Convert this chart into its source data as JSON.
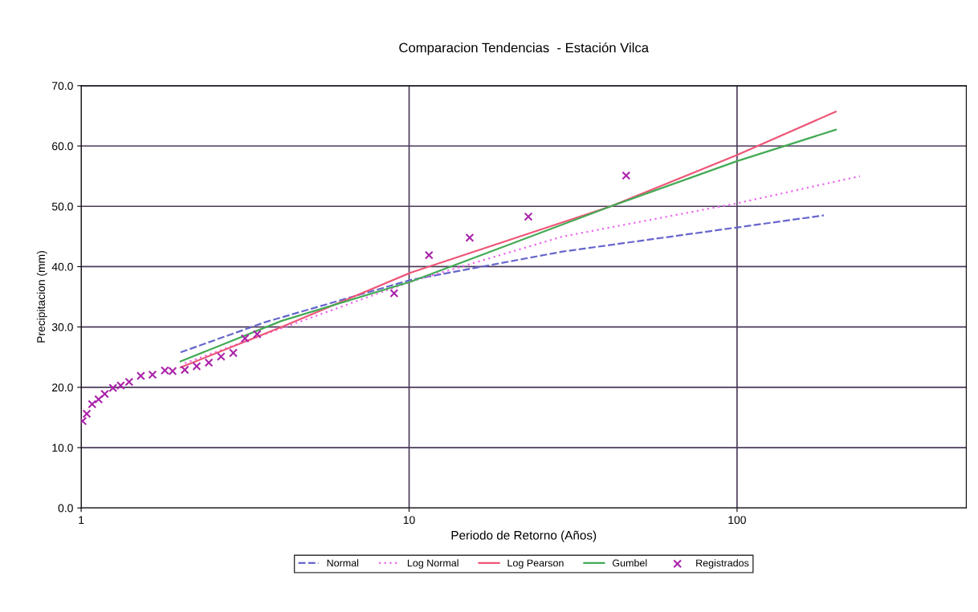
{
  "chart_data": {
    "type": "line",
    "title": "Comparacion Tendencias  - Estación Vilca",
    "xlabel": "Periodo de Retorno (Años)",
    "ylabel": "Precipitacion (mm)",
    "log": "x",
    "xlim": [
      1,
      500
    ],
    "xticks": [
      1,
      10,
      100
    ],
    "ylim": [
      0,
      70
    ],
    "yticks": [
      {
        "value": 0,
        "label": "0.0"
      },
      {
        "value": 10,
        "label": "10.0"
      },
      {
        "value": 20,
        "label": "20.0"
      },
      {
        "value": 30,
        "label": "30.0"
      },
      {
        "value": 40,
        "label": "40.0"
      },
      {
        "value": 50,
        "label": "50.0"
      },
      {
        "value": 60,
        "label": "60.0"
      },
      {
        "value": 70,
        "label": "70.0"
      }
    ],
    "grid": true,
    "legend": "bottom",
    "series": [
      {
        "name": "Normal",
        "color": "#6666cc",
        "line_style": "dashed",
        "x": [
          2.01,
          3.64,
          10.1,
          29.4,
          100,
          184
        ],
        "values": [
          25.8,
          30.8,
          37.8,
          42.5,
          46.5,
          48.5
        ]
      },
      {
        "name": "Log Normal",
        "color": "#ee66ee",
        "line_style": "dotted",
        "x": [
          2.07,
          10.1,
          29.4,
          100,
          237
        ],
        "values": [
          24,
          37.5,
          45,
          50.5,
          55
        ]
      },
      {
        "name": "Log Pearson",
        "color": "#ee5577",
        "line_style": "solid",
        "x": [
          2.01,
          4.08,
          10.1,
          41.2,
          100,
          200
        ],
        "values": [
          23.3,
          30,
          39,
          50,
          58.5,
          65.7
        ]
      },
      {
        "name": "Gumbel",
        "color": "#44aa55",
        "line_style": "solid",
        "x": [
          2.01,
          4.08,
          10.1,
          41.2,
          100,
          200
        ],
        "values": [
          24.3,
          31,
          37.5,
          50,
          57.5,
          62.7
        ]
      },
      {
        "name": "Registrados",
        "type": "scatter",
        "marker": "cross",
        "color": "#aa22aa",
        "x": [
          1.01,
          1.04,
          1.08,
          1.13,
          1.18,
          1.25,
          1.32,
          1.4,
          1.52,
          1.65,
          1.8,
          1.9,
          2.07,
          2.25,
          2.45,
          2.67,
          2.91,
          3.16,
          3.44,
          9.0,
          11.5,
          15.3,
          23.1,
          45.9
        ],
        "values": [
          14.4,
          15.6,
          17.2,
          18,
          18.9,
          19.9,
          20.3,
          20.9,
          21.9,
          22.1,
          22.8,
          22.7,
          22.9,
          23.5,
          24.1,
          25.1,
          25.7,
          28.1,
          28.8,
          35.6,
          41.9,
          44.8,
          48.3,
          55.1
        ]
      }
    ]
  }
}
